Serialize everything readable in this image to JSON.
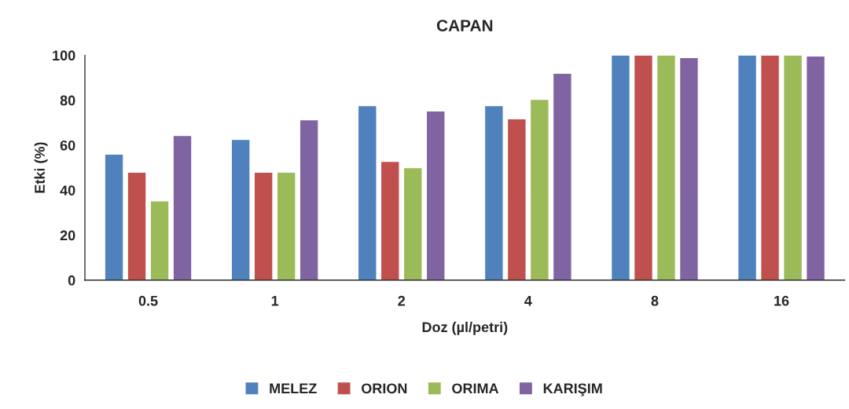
{
  "chart_data": {
    "type": "bar",
    "title": "CAPAN",
    "xlabel": "Doz (µl/petri)",
    "ylabel": "Etki (%)",
    "categories": [
      "0.5",
      "1",
      "2",
      "4",
      "8",
      "16"
    ],
    "series": [
      {
        "name": "MELEZ",
        "color": "#4f81bd",
        "values": [
          56,
          62.6,
          77.6,
          77.6,
          100,
          100
        ]
      },
      {
        "name": "ORION",
        "color": "#c0504d",
        "values": [
          48,
          48,
          52.8,
          71.7,
          100,
          100
        ]
      },
      {
        "name": "ORIMA",
        "color": "#9bbb59",
        "values": [
          35.3,
          48,
          50,
          80.4,
          100,
          100
        ]
      },
      {
        "name": "KARIŞIM",
        "color": "#8064a2",
        "values": [
          64.3,
          71.3,
          75.2,
          92,
          99,
          99.7
        ]
      }
    ],
    "ylim": [
      0,
      100
    ],
    "yticks": [
      0,
      20,
      40,
      60,
      80,
      100
    ],
    "grid": false,
    "legend": "bottom"
  }
}
